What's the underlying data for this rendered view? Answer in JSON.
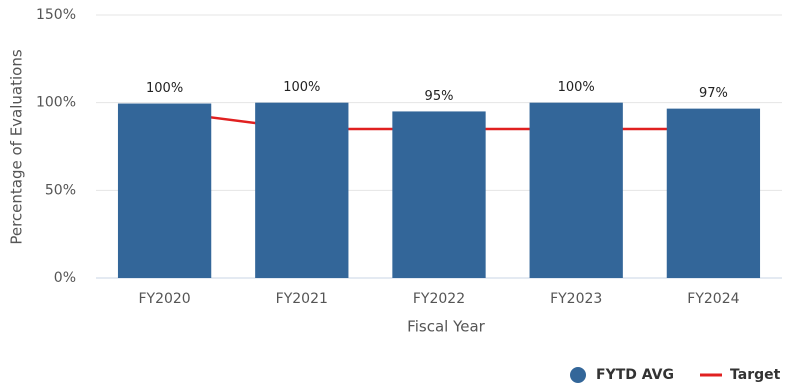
{
  "chart_data": {
    "type": "bar",
    "x_label": "Fiscal Year",
    "y_label": "Percentage of Evaluations",
    "categories": [
      "FY2020",
      "FY2021",
      "FY2022",
      "FY2023",
      "FY2024"
    ],
    "series": [
      {
        "name": "FYTD AVG",
        "type": "bar",
        "color": "#336699",
        "values": [
          99.5,
          100,
          95,
          100,
          96.6
        ],
        "value_labels": [
          "100%",
          "100%",
          "95%",
          "100%",
          "97%"
        ]
      },
      {
        "name": "Target",
        "type": "line",
        "color": "#e02020",
        "values": [
          95,
          85,
          85,
          85,
          85
        ]
      }
    ],
    "ylim": [
      0,
      150
    ],
    "yticks": [
      {
        "value": 0,
        "label": "0%"
      },
      {
        "value": 50,
        "label": "50%"
      },
      {
        "value": 100,
        "label": "100%"
      },
      {
        "value": 150,
        "label": "150%"
      }
    ],
    "grid": true,
    "legend": "bottom-right"
  }
}
